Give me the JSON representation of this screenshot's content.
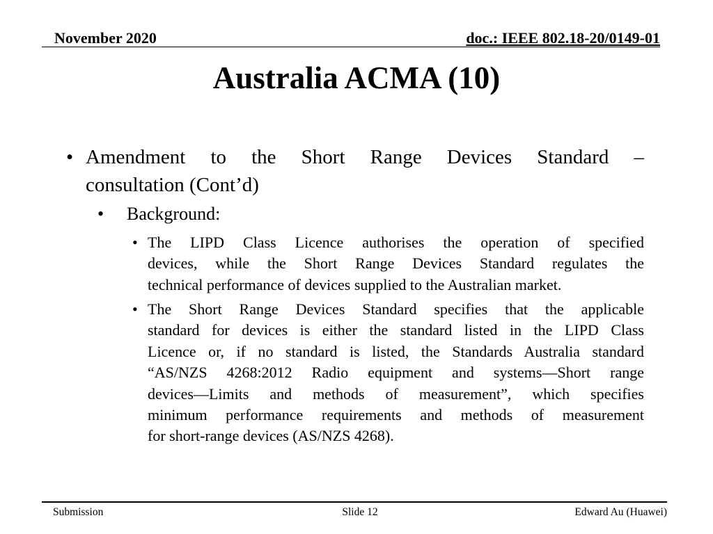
{
  "slide": {
    "background_color": "#ffffff",
    "text_color": "#000000",
    "bullet_char": "•",
    "header": {
      "date": "November 2020",
      "doc_number": "doc.: IEEE 802.18-20/0149-01"
    },
    "title": "Australia ACMA (10)",
    "body": {
      "bullet1": {
        "line1": "Amendment to the Short Range Devices Standard –",
        "line2": "consultation (Cont’d)"
      },
      "bullet2_label": "Background:",
      "sub_bullet1_lines": [
        "The LIPD Class Licence authorises the operation of specified",
        "devices, while the Short Range Devices Standard regulates the",
        "technical performance of devices supplied to the Australian market."
      ],
      "sub_bullet2_lines": [
        "The Short Range Devices Standard specifies that the applicable",
        "standard for devices is either the standard listed in the LIPD Class",
        "Licence or, if no standard is listed, the Standards Australia standard",
        "“AS/NZS 4268:2012 Radio equipment and systems—Short range",
        "devices—Limits and methods of measurement”, which specifies",
        "minimum performance requirements and methods of measurement",
        "for short-range devices (AS/NZS 4268)."
      ]
    },
    "footer": {
      "left": "Submission",
      "center": "Slide 12",
      "right": "Edward Au (Huawei)"
    }
  }
}
